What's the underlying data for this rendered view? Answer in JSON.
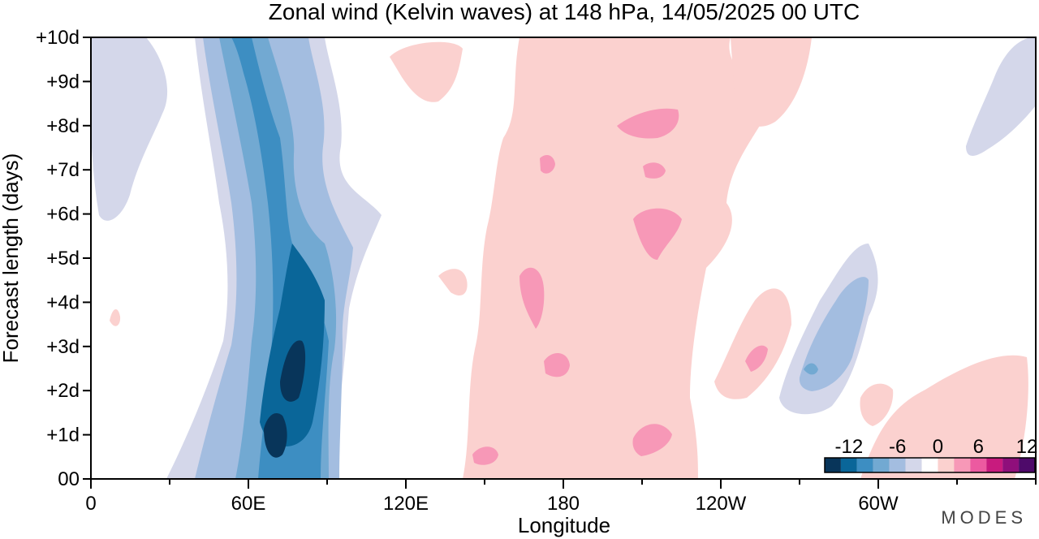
{
  "chart_data": {
    "type": "heatmap",
    "title": "Zonal wind (Kelvin waves) at 148 hPa,  14/05/2025  00 UTC",
    "xlabel": "Longitude",
    "ylabel": "Forecast length (days)",
    "x_ticks": [
      "0",
      "60E",
      "120E",
      "180",
      "120W",
      "60W"
    ],
    "y_ticks": [
      "00",
      "+1d",
      "+2d",
      "+3d",
      "+4d",
      "+5d",
      "+6d",
      "+7d",
      "+8d",
      "+9d",
      "+10d"
    ],
    "xlim": [
      0,
      360
    ],
    "ylim": [
      0,
      10
    ],
    "colorbar": {
      "labels": [
        "-12",
        "-6",
        "0",
        "6",
        "12"
      ],
      "levels": [
        -14,
        -12,
        -10,
        -8,
        -6,
        -4,
        -2,
        2,
        4,
        6,
        8,
        10,
        12,
        14
      ],
      "colors": [
        "#08355a",
        "#0a6699",
        "#3d8ec2",
        "#72a9d2",
        "#a3bde0",
        "#d4d7ea",
        "#ffffff",
        "#fbd1cf",
        "#f798b7",
        "#ec5aa0",
        "#c81b7e",
        "#8f0f7b",
        "#4e0a6a"
      ]
    },
    "series": [
      {
        "values": [
          [
            40,
            0
          ],
          [
            48,
            1.5
          ],
          [
            55,
            3
          ],
          [
            53,
            4.5
          ],
          [
            53,
            6
          ],
          [
            47,
            7.5
          ],
          [
            42,
            9
          ],
          [
            40,
            10
          ]
        ]
      },
      {
        "values": [
          [
            97,
            0
          ],
          [
            90,
            1.5
          ],
          [
            96,
            3
          ],
          [
            100,
            4.5
          ],
          [
            108,
            5.5
          ],
          [
            98,
            7
          ],
          [
            92,
            8.5
          ],
          [
            88,
            10
          ]
        ]
      },
      {
        "values": [
          [
            58,
            0
          ],
          [
            62,
            1.5
          ],
          [
            64,
            3
          ],
          [
            66,
            4.5
          ],
          [
            63,
            6
          ],
          [
            61,
            7.5
          ],
          [
            55,
            9
          ],
          [
            50,
            10
          ]
        ]
      },
      {
        "values": [
          [
            85,
            0
          ],
          [
            82,
            1.5
          ],
          [
            87,
            3
          ],
          [
            90,
            4.5
          ],
          [
            84,
            6
          ],
          [
            77,
            7.5
          ],
          [
            71,
            9
          ],
          [
            67,
            10
          ]
        ]
      },
      {
        "values": [
          [
            62,
            0
          ],
          [
            66,
            1.5
          ],
          [
            69,
            3
          ],
          [
            71,
            4.5
          ],
          [
            68,
            6
          ],
          [
            66,
            7.5
          ],
          [
            61,
            9
          ],
          [
            56,
            10
          ]
        ]
      },
      {
        "values": [
          [
            80,
            0
          ],
          [
            78,
            1.5
          ],
          [
            83,
            3
          ],
          [
            85,
            4.5
          ],
          [
            79,
            6
          ],
          [
            73,
            7.5
          ],
          [
            66,
            9
          ],
          [
            62,
            10
          ]
        ]
      },
      {
        "values": [
          [
            69,
            1
          ],
          [
            74,
            2.2
          ],
          [
            77,
            3.2
          ],
          [
            79,
            4.2
          ],
          [
            73,
            5.3
          ],
          [
            71,
            6.4
          ],
          [
            68,
            7.5
          ],
          [
            66,
            8.8
          ]
        ]
      },
      {
        "values": [
          [
            80,
            0.9
          ],
          [
            81,
            2
          ],
          [
            82,
            3.2
          ],
          [
            84,
            4.1
          ],
          [
            79,
            5.1
          ],
          [
            76,
            6.2
          ],
          [
            74,
            7.3
          ],
          [
            74,
            8.6
          ]
        ]
      },
      {
        "values": [
          [
            73,
            0.7
          ],
          [
            74,
            2.2
          ],
          [
            77,
            3.6
          ]
        ]
      },
      {
        "values": [
          [
            78,
            0.7
          ],
          [
            80,
            2.1
          ],
          [
            80,
            3.5
          ]
        ]
      }
    ]
  },
  "brand": "MODES"
}
